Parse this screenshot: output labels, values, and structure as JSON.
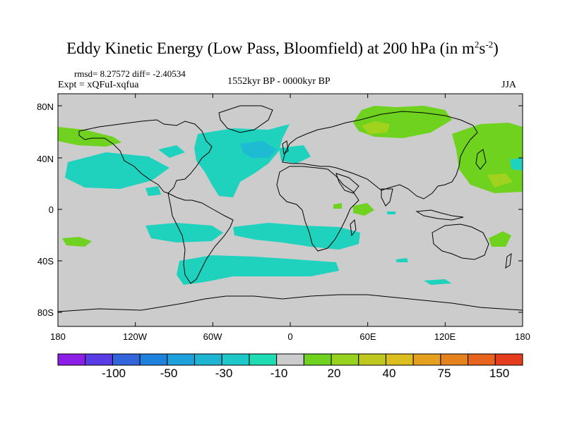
{
  "title": "Eddy Kinetic Energy (Low Pass, Bloomfield) at 200 hPa (in m",
  "title_units": {
    "sup1": "2",
    "mid": "s",
    "sup2": "-2",
    "close": ")"
  },
  "stats": "rmsd= 8.27572 diff= -2.40534",
  "experiment": "Expt = xQFuI-xqfua",
  "period": "1552kyr BP - 0000kyr BP",
  "season": "JJA",
  "map": {
    "background": "#cccccc",
    "lat_ticks": [
      "80N",
      "40N",
      "0",
      "40S",
      "80S"
    ],
    "lon_ticks": [
      "180",
      "120W",
      "60W",
      "0",
      "60E",
      "120E",
      "180"
    ]
  },
  "colorbar": {
    "colors": [
      "#8c1ee6",
      "#5a3ce6",
      "#3264dc",
      "#1e82dc",
      "#1ea0dc",
      "#1eb4d2",
      "#1ec8c8",
      "#1edcb4",
      "#cccccc",
      "#6ed21e",
      "#96d21e",
      "#bec81e",
      "#dcbe1e",
      "#e6a01e",
      "#e6821e",
      "#e6641e",
      "#e63c1e"
    ],
    "labels": [
      "-100",
      "-50",
      "-30",
      "-10",
      "20",
      "40",
      "75",
      "150"
    ]
  },
  "anomaly_colors": {
    "cyan": "#1ed2be",
    "cyan_dark": "#1ebcd2",
    "green": "#6ed21e",
    "green_light": "#a0d21e"
  }
}
